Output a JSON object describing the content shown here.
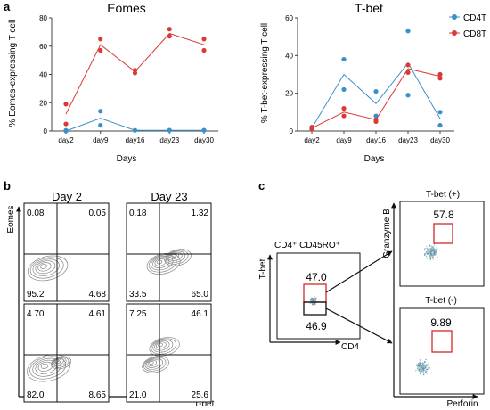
{
  "panel_labels": {
    "a": "a",
    "b": "b",
    "c": "c"
  },
  "colors": {
    "cd4": "#3b8fc9",
    "cd8": "#d93a34",
    "gate": "#d42a2a",
    "axis": "#444444",
    "contour": "#888888"
  },
  "chart_data": [
    {
      "type": "line",
      "title": "Eomes",
      "xlabel": "Days",
      "ylabel": "% Eomes-expressing T cell",
      "categories": [
        "day2",
        "day9",
        "day16",
        "day23",
        "day30"
      ],
      "ylim": [
        0,
        80
      ],
      "yticks": [
        "0",
        "20",
        "40",
        "60",
        "80"
      ],
      "grid": false,
      "series": [
        {
          "name": "CD4T",
          "color": "#3b8fc9",
          "mean": [
            0,
            9,
            0.5,
            0.5,
            0.5
          ],
          "points": [
            [
              0,
              0.5
            ],
            [
              0,
              0
            ],
            [
              1,
              14
            ],
            [
              1,
              4
            ],
            [
              2,
              0.5
            ],
            [
              2,
              0.5
            ],
            [
              3,
              0.5
            ],
            [
              3,
              0.5
            ],
            [
              4,
              0.5
            ],
            [
              4,
              0.5
            ]
          ]
        },
        {
          "name": "CD8T",
          "color": "#d93a34",
          "mean": [
            12,
            61,
            42,
            69,
            61
          ],
          "points": [
            [
              0,
              19
            ],
            [
              0,
              5
            ],
            [
              1,
              65
            ],
            [
              1,
              57
            ],
            [
              2,
              43
            ],
            [
              2,
              41
            ],
            [
              3,
              72
            ],
            [
              3,
              67
            ],
            [
              4,
              65
            ],
            [
              4,
              57
            ]
          ]
        }
      ]
    },
    {
      "type": "line",
      "title": "T-bet",
      "xlabel": "Days",
      "ylabel": "% T-bet-expressing T cell",
      "categories": [
        "day2",
        "day9",
        "day16",
        "day23",
        "day30"
      ],
      "ylim": [
        0,
        60
      ],
      "yticks": [
        "0",
        "20",
        "40",
        "60"
      ],
      "grid": false,
      "legend_position": "top-right",
      "series": [
        {
          "name": "CD4T",
          "color": "#3b8fc9",
          "mean": [
            1.5,
            30,
            14.5,
            36,
            6.5
          ],
          "points": [
            [
              0,
              1
            ],
            [
              0,
              2
            ],
            [
              1,
              38
            ],
            [
              1,
              22
            ],
            [
              2,
              21
            ],
            [
              2,
              8
            ],
            [
              3,
              53
            ],
            [
              3,
              19
            ],
            [
              4,
              10
            ],
            [
              4,
              3
            ]
          ]
        },
        {
          "name": "CD8T",
          "color": "#d93a34",
          "mean": [
            1.5,
            10,
            6,
            33,
            29
          ],
          "points": [
            [
              0,
              2
            ],
            [
              0,
              1
            ],
            [
              1,
              12
            ],
            [
              1,
              8
            ],
            [
              2,
              6
            ],
            [
              2,
              5
            ],
            [
              3,
              35
            ],
            [
              3,
              31
            ],
            [
              4,
              30
            ],
            [
              4,
              28
            ]
          ]
        }
      ]
    }
  ],
  "panel_b": {
    "ylabel": "Eomes",
    "xlabel": "T-bet",
    "day_titles": [
      "Day 2",
      "Day 23"
    ],
    "plots": [
      {
        "quadrants": [
          "0.08",
          "0.05",
          "95.2",
          "4.68"
        ]
      },
      {
        "quadrants": [
          "0.18",
          "1.32",
          "33.5",
          "65.0"
        ]
      },
      {
        "quadrants": [
          "4.70",
          "4.61",
          "82.0",
          "8.65"
        ]
      },
      {
        "quadrants": [
          "7.25",
          "46.1",
          "21.0",
          "25.6"
        ]
      }
    ]
  },
  "panel_c": {
    "gate_title": "CD4⁺ CD45RO⁺",
    "ylabel": "T-bet",
    "xlabel": "CD4",
    "upper_pct": "47.0",
    "lower_pct": "46.9",
    "pos_title": "T-bet (+)",
    "neg_title": "T-bet (-)",
    "pos_pct": "57.8",
    "neg_pct": "9.89",
    "right_ylabel": "Granzyme B",
    "right_xlabel": "Perforin"
  }
}
